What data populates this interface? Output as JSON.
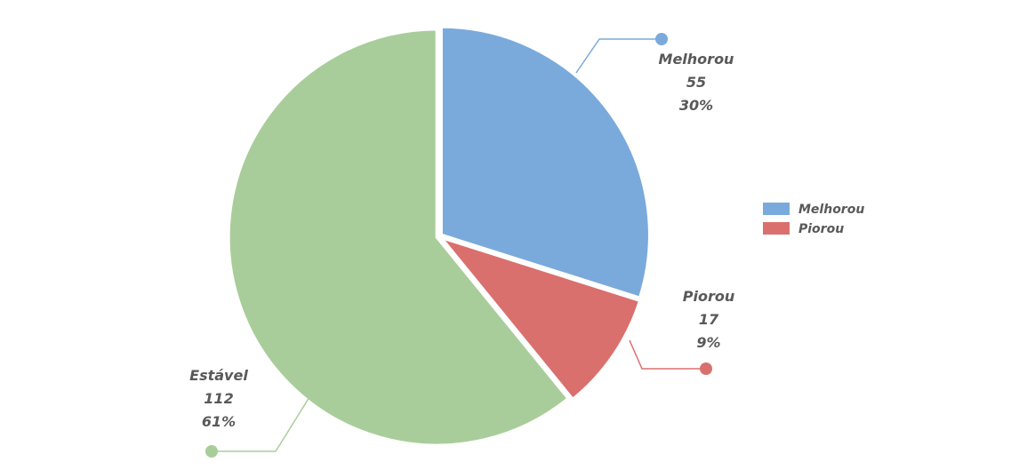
{
  "chart_data": {
    "type": "pie",
    "title": "",
    "slices": [
      {
        "name": "Melhorou",
        "value": 55,
        "percent": "30%",
        "color": "#7aaadb"
      },
      {
        "name": "Piorou",
        "value": 17,
        "percent": "9%",
        "color": "#d9706d"
      },
      {
        "name": "Estável",
        "value": 112,
        "percent": "61%",
        "color": "#a9cd9a"
      }
    ],
    "legend": {
      "position": "right",
      "entries": [
        "Melhorou",
        "Piorou"
      ]
    }
  }
}
